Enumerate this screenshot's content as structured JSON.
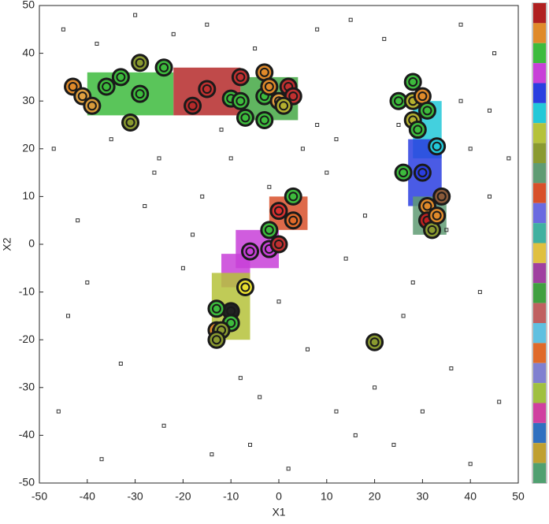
{
  "chart_data": {
    "type": "scatter",
    "xlabel": "X1",
    "ylabel": "X2",
    "xlim": [
      -50,
      50
    ],
    "ylim": [
      -50,
      50
    ],
    "xticks": [
      -50,
      -40,
      -30,
      -20,
      -10,
      0,
      10,
      20,
      30,
      40,
      50
    ],
    "yticks": [
      -50,
      -40,
      -30,
      -20,
      -10,
      0,
      10,
      20,
      30,
      40,
      50
    ],
    "regions": [
      {
        "color": "#3dbb3d",
        "x": [
          -40,
          -22
        ],
        "y": [
          27,
          36
        ]
      },
      {
        "color": "#b52a2a",
        "x": [
          -22,
          -8
        ],
        "y": [
          27,
          37
        ]
      },
      {
        "color": "#44a844",
        "x": [
          -8,
          4
        ],
        "y": [
          26,
          35
        ]
      },
      {
        "color": "#22c8d8",
        "x": [
          28,
          34
        ],
        "y": [
          18,
          30
        ]
      },
      {
        "color": "#2a3ee0",
        "x": [
          27,
          34
        ],
        "y": [
          8,
          22
        ]
      },
      {
        "color": "#5f9b73",
        "x": [
          28,
          35
        ],
        "y": [
          2,
          10
        ]
      },
      {
        "color": "#d8502a",
        "x": [
          -2,
          6
        ],
        "y": [
          3,
          10
        ]
      },
      {
        "color": "#c840d8",
        "x": [
          -9,
          0
        ],
        "y": [
          -5,
          3
        ]
      },
      {
        "color": "#c840d8",
        "x": [
          -12,
          -6
        ],
        "y": [
          -9,
          -2
        ]
      },
      {
        "color": "#b5c23a",
        "x": [
          -14,
          -6
        ],
        "y": [
          -20,
          -6
        ]
      }
    ],
    "noise": {
      "color": "#333333",
      "x": [
        -45,
        -38,
        -30,
        -22,
        -15,
        -5,
        8,
        15,
        22,
        38,
        45,
        -47,
        -35,
        -25,
        -12,
        5,
        12,
        25,
        40,
        48,
        -42,
        -28,
        -18,
        -2,
        10,
        18,
        35,
        44,
        -40,
        -20,
        0,
        14,
        26,
        42,
        -33,
        -8,
        6,
        20,
        36,
        -46,
        -24,
        -4,
        16,
        30,
        46,
        -37,
        -14,
        2,
        24,
        40,
        -26,
        -10,
        12,
        38,
        -44,
        -16,
        8,
        28,
        44,
        -6
      ],
      "y": [
        45,
        42,
        48,
        44,
        46,
        41,
        45,
        47,
        43,
        46,
        40,
        20,
        22,
        18,
        24,
        20,
        22,
        25,
        20,
        18,
        5,
        8,
        2,
        12,
        15,
        6,
        3,
        10,
        -8,
        -5,
        -12,
        -3,
        -15,
        -10,
        -25,
        -28,
        -22,
        -30,
        -26,
        -35,
        -38,
        -32,
        -40,
        -35,
        -33,
        -45,
        -44,
        -47,
        -42,
        -46,
        15,
        18,
        -35,
        30,
        -15,
        10,
        25,
        -8,
        28,
        -42
      ]
    },
    "centers": {
      "x": [
        -43,
        -41,
        -39,
        -36,
        -33,
        -29,
        -29,
        -31,
        -24,
        -18,
        -15,
        -10,
        -8,
        -8,
        -7,
        -3,
        -3,
        -3,
        -2,
        0,
        2,
        3,
        1,
        28,
        25,
        28,
        30,
        31,
        28,
        29,
        33,
        30,
        26,
        34,
        31,
        31,
        32,
        33,
        3,
        0,
        3,
        -2,
        -6,
        -2,
        0,
        -7,
        -10,
        -13,
        -10,
        -13,
        -12,
        -13,
        20
      ],
      "y": [
        33,
        31,
        29,
        33,
        35,
        38,
        31.5,
        25.5,
        37,
        29,
        32.5,
        30.5,
        30,
        35,
        26.5,
        26,
        31,
        36,
        33,
        30,
        33,
        31,
        29,
        34,
        30,
        30,
        31,
        28,
        26,
        24,
        20.5,
        15,
        15,
        10,
        8,
        5,
        3,
        6,
        10,
        7,
        5,
        3,
        -1.5,
        -1,
        0,
        -9,
        -14,
        -13.5,
        -16.5,
        -18,
        -18,
        -20,
        -20.5
      ],
      "colors": [
        "#e08a2a",
        "#e0a040",
        "#d89a3a",
        "#3dbb3d",
        "#3dbb3d",
        "#8a9a30",
        "#3dbb3d",
        "#8a9a30",
        "#3dbb3d",
        "#b52a2a",
        "#c03030",
        "#3dbb3d",
        "#3dbb3d",
        "#c03030",
        "#3dbb3d",
        "#3dbb3d",
        "#3dbb3d",
        "#e08a2a",
        "#e08a2a",
        "#e09a40",
        "#c03030",
        "#c03030",
        "#b5b030",
        "#3dbb3d",
        "#3dbb3d",
        "#b5b030",
        "#e08a2a",
        "#3dbb3d",
        "#b5b030",
        "#3dbb3d",
        "#22c8d8",
        "#2a3ee0",
        "#3dbb3d",
        "#8a5a3a",
        "#e08a2a",
        "#c02020",
        "#8a9a30",
        "#e08a2a",
        "#3dbb3d",
        "#d83030",
        "#e06a2a",
        "#3dbb3d",
        "#c840d8",
        "#c840d8",
        "#c03030",
        "#e8e030",
        "#222222",
        "#3dbb3d",
        "#3dbb3d",
        "#e08a2a",
        "#8a9a30",
        "#8a9a30",
        "#8a9a30"
      ]
    },
    "colorbar": [
      "#b02020",
      "#e08a2a",
      "#3dbb3d",
      "#c840d8",
      "#2a3ee0",
      "#22c8d8",
      "#b5c23a",
      "#8a9a30",
      "#5f9b73",
      "#d8502a",
      "#6a6ae0",
      "#40b0a0",
      "#e0c040",
      "#a040a0",
      "#40a040",
      "#c06060",
      "#60c0e0",
      "#e06a2a",
      "#8080d0",
      "#a0c040",
      "#d040a0",
      "#3070c0",
      "#c0a030",
      "#50a070"
    ]
  }
}
